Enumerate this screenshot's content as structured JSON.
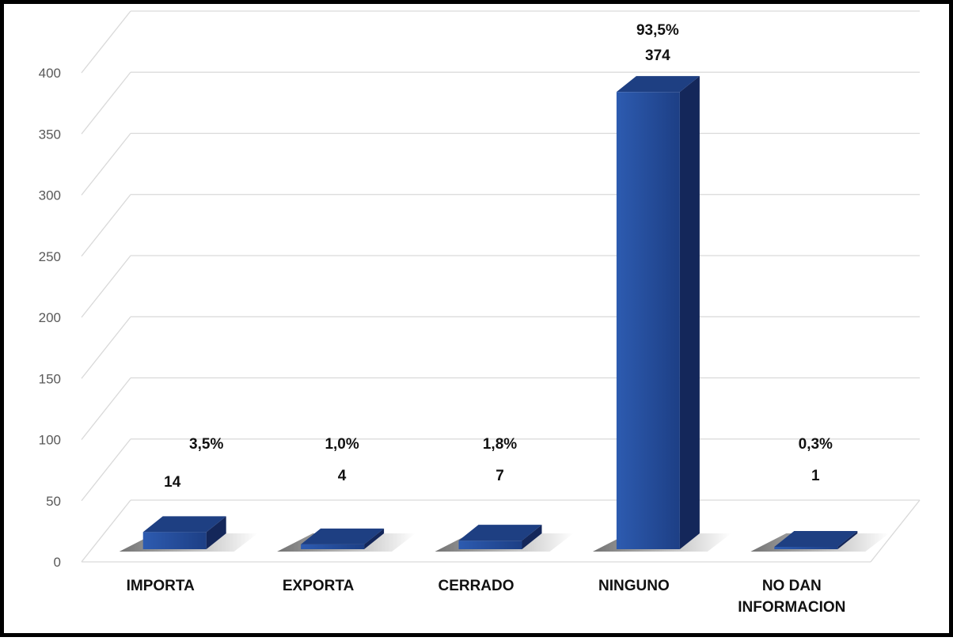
{
  "chart_data": {
    "type": "bar",
    "categories": [
      [
        "IMPORTA"
      ],
      [
        "EXPORTA"
      ],
      [
        "CERRADO"
      ],
      [
        "NINGUNO"
      ],
      [
        "NO DAN",
        "INFORMACION"
      ]
    ],
    "values": [
      14,
      4,
      7,
      374,
      1
    ],
    "percent_labels": [
      "3,5%",
      "1,0%",
      "1,8%",
      "93,5%",
      "0,3%"
    ],
    "value_labels": [
      "14",
      "4",
      "7",
      "374",
      "1"
    ],
    "yticks": [
      "0",
      "50",
      "100",
      "150",
      "200",
      "250",
      "300",
      "350",
      "400"
    ],
    "ylim": [
      0,
      400
    ],
    "grid": true,
    "style": "3d-column",
    "colors": {
      "bar_front": "#2b56a6",
      "bar_side": "#14275a",
      "bar_top": "#1e3f82",
      "grid": "#d9d9d9",
      "frame": "#000000"
    }
  }
}
